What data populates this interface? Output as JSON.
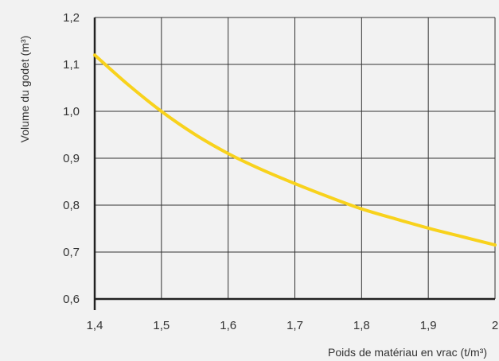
{
  "chart_data": {
    "type": "line",
    "xlabel": "Poids de matériau en vrac (t/m³)",
    "ylabel": "Volume du godet (m³)",
    "xlim": [
      1.4,
      2.0
    ],
    "ylim": [
      0.6,
      1.2
    ],
    "x_ticks": [
      1.4,
      1.5,
      1.6,
      1.7,
      1.8,
      1.9,
      2.0
    ],
    "y_ticks": [
      0.6,
      0.7,
      0.8,
      0.9,
      1.0,
      1.1,
      1.2
    ],
    "x_tick_labels": [
      "1,4",
      "1,5",
      "1,6",
      "1,7",
      "1,8",
      "1,9",
      "2"
    ],
    "y_tick_labels": [
      "0,6",
      "0,7",
      "0,8",
      "0,9",
      "1,0",
      "1,1",
      "1,2"
    ],
    "grid": true,
    "series": [
      {
        "color": "#f8d21c",
        "x": [
          1.4,
          1.45,
          1.5,
          1.55,
          1.6,
          1.65,
          1.7,
          1.75,
          1.8,
          1.85,
          1.9,
          1.95,
          2.0
        ],
        "y": [
          1.12,
          1.057,
          1.0,
          0.951,
          0.91,
          0.876,
          0.846,
          0.818,
          0.792,
          0.771,
          0.751,
          0.733,
          0.715
        ]
      }
    ],
    "colors": {
      "background": "#f2f2f2",
      "grid": "#333333",
      "axis": "#222222",
      "text": "#333333"
    }
  }
}
